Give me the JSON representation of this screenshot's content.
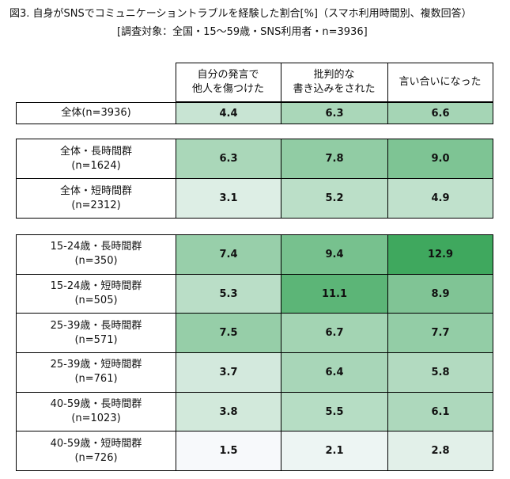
{
  "title": "図3. 自身がSNSでコミュニケーショントラブルを経験した割合[%]（スマホ利用時間別、複数回答）",
  "subtitle": "[調査対象：全国・15～59歳・SNS利用者・n=3936]",
  "chart_data": {
    "type": "heatmap",
    "columns": [
      {
        "line1": "自分の発言で",
        "line2": "他人を傷つけた"
      },
      {
        "line1": "批判的な",
        "line2": "書き込みをされた"
      },
      {
        "line1": "言い合いになった",
        "line2": ""
      }
    ],
    "color_scale": {
      "min": 1.5,
      "max": 12.9,
      "low_color": "#f7f9fb",
      "high_color": "#3fa85e"
    },
    "groups": [
      {
        "name": "all",
        "rows": [
          {
            "line1": "全体(n=3936)",
            "line2": "",
            "values": [
              4.4,
              6.3,
              6.6
            ]
          }
        ]
      },
      {
        "name": "duration",
        "rows": [
          {
            "line1": "全体・長時間群",
            "line2": "(n=1624)",
            "values": [
              6.3,
              7.8,
              9.0
            ]
          },
          {
            "line1": "全体・短時間群",
            "line2": "(n=2312)",
            "values": [
              3.1,
              5.2,
              4.9
            ]
          }
        ]
      },
      {
        "name": "age",
        "rows": [
          {
            "line1": "15-24歳・長時間群",
            "line2": "(n=350)",
            "values": [
              7.4,
              9.4,
              12.9
            ]
          },
          {
            "line1": "15-24歳・短時間群",
            "line2": "(n=505)",
            "values": [
              5.3,
              11.1,
              8.9
            ]
          },
          {
            "line1": "25-39歳・長時間群",
            "line2": "(n=571)",
            "values": [
              7.5,
              6.7,
              7.7
            ]
          },
          {
            "line1": "25-39歳・短時間群",
            "line2": "(n=761)",
            "values": [
              3.7,
              6.4,
              5.8
            ]
          },
          {
            "line1": "40-59歳・長時間群",
            "line2": "(n=1023)",
            "values": [
              3.8,
              5.5,
              6.1
            ]
          },
          {
            "line1": "40-59歳・短時間群",
            "line2": "(n=726)",
            "values": [
              1.5,
              2.1,
              2.8
            ]
          }
        ]
      }
    ]
  }
}
